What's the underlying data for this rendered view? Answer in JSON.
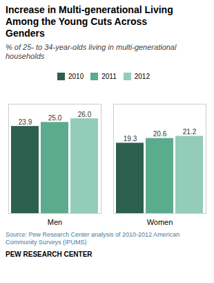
{
  "chart_data": {
    "type": "bar",
    "title": "Increase in Multi-generational Living\nAmong the Young Cuts Across\nGenders",
    "subtitle": "% of 25- to 34-year-olds living in multi-generational\nhouseholds",
    "categories": [
      "Men",
      "Women"
    ],
    "series": [
      {
        "name": "2010",
        "color": "#2d5f4e",
        "values": [
          23.9,
          19.3
        ],
        "value_labels": [
          "23.9",
          "19.3"
        ]
      },
      {
        "name": "2011",
        "color": "#5bab8e",
        "values": [
          25.0,
          20.6
        ],
        "value_labels": [
          "25.0",
          "20.6"
        ]
      },
      {
        "name": "2012",
        "color": "#93cdb9",
        "values": [
          26.0,
          21.2
        ],
        "value_labels": [
          "26.0",
          "21.2"
        ]
      }
    ],
    "ylim": [
      0,
      30
    ],
    "data_labels": true,
    "tick_labels": "x",
    "legend": "top",
    "annotations": [
      "Source: Pew Research Center analysis of 2010-2012 American\nCommunity Surveys (IPUMS)",
      "PEW RESEARCH CENTER"
    ]
  }
}
